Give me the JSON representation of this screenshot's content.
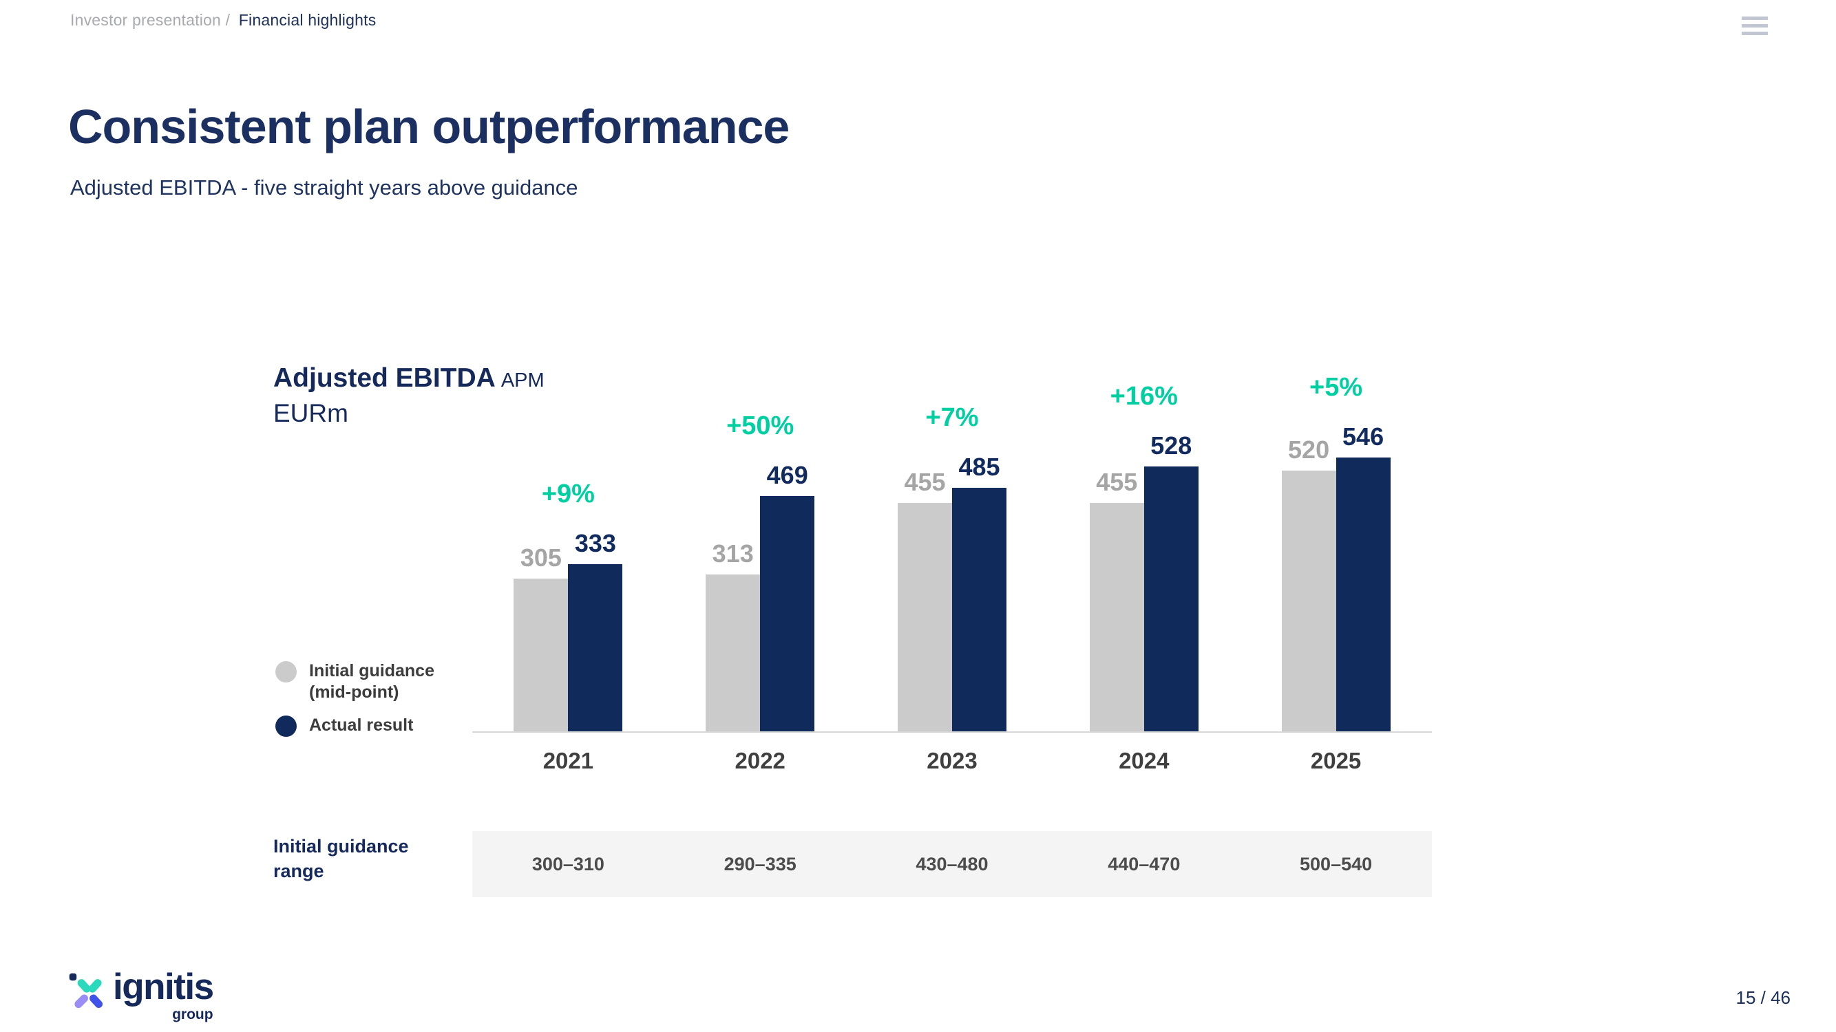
{
  "breadcrumb": {
    "section": "Investor presentation /",
    "page": "Financial highlights"
  },
  "title": "Consistent plan outperformance",
  "subtitle": "Adjusted EBITDA - five straight years above guidance",
  "chart": {
    "title_main": "Adjusted EBITDA",
    "title_suffix": "APM",
    "unit": "EURm"
  },
  "legend": [
    {
      "label": "Initial guidance (mid-point)"
    },
    {
      "label": "Actual result"
    }
  ],
  "chart_data": {
    "type": "bar",
    "title": "Adjusted EBITDA APM",
    "ylabel": "EURm",
    "grid": false,
    "legend_position": "left",
    "categories": [
      "2021",
      "2022",
      "2023",
      "2024",
      "2025"
    ],
    "series": [
      {
        "name": "Initial guidance (mid-point)",
        "color": "#cbcbcb",
        "values": [
          305,
          313,
          455,
          455,
          520
        ]
      },
      {
        "name": "Actual result",
        "color": "#102a5c",
        "values": [
          333,
          469,
          485,
          528,
          546
        ]
      }
    ],
    "delta_labels": [
      "+9%",
      "+50%",
      "+7%",
      "+16%",
      "+5%"
    ],
    "guidance_range": [
      "300–310",
      "290–335",
      "430–480",
      "440–470",
      "500–540"
    ],
    "ylim": [
      0,
      600
    ]
  },
  "range_row_label": "Initial guidance range",
  "footer": {
    "logo_text": "ignitis",
    "logo_sub": "group",
    "page": "15 / 46"
  },
  "colors": {
    "accent_teal": "#00cfa2",
    "navy": "#15295b",
    "guidance_label": "#a5a5a5",
    "actual_label": "#122b5e"
  }
}
